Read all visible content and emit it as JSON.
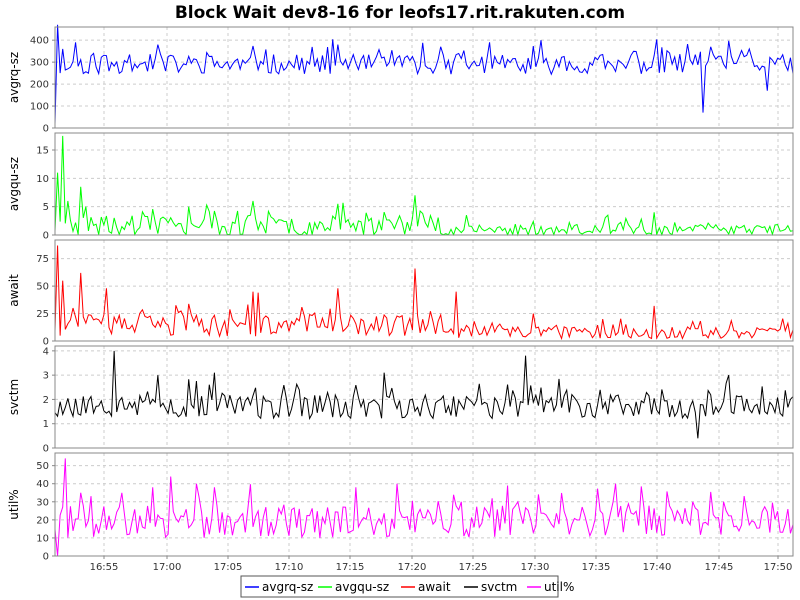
{
  "chart_data": {
    "type": "line",
    "title": "Block Wait dev8-16 for leofs17.rit.rakuten.com",
    "x_ticks": [
      "16:55",
      "17:00",
      "17:05",
      "17:10",
      "17:15",
      "17:20",
      "17:25",
      "17:30",
      "17:35",
      "17:40",
      "17:45",
      "17:50"
    ],
    "grid": true,
    "legend_position": "bottom-center",
    "panels": [
      {
        "ylabel": "avgrq-sz",
        "series_name": "avgrq-sz",
        "color": "#0000ff",
        "ylim": [
          0,
          460
        ],
        "ticks": [
          "0",
          "100",
          "200",
          "300",
          "400"
        ],
        "tick_values": [
          0,
          100,
          200,
          300,
          400
        ],
        "base": 290,
        "amp": 45,
        "seed": 11,
        "spikes": [
          [
            0,
            20
          ],
          [
            1,
            470
          ],
          [
            2,
            250
          ],
          [
            3,
            360
          ],
          [
            8,
            390
          ],
          [
            40,
            380
          ],
          [
            110,
            380
          ],
          [
            150,
            370
          ],
          [
            230,
            260
          ],
          [
            252,
            70
          ],
          [
            270,
            360
          ],
          [
            277,
            170
          ],
          [
            280,
            290
          ]
        ]
      },
      {
        "ylabel": "avgqu-sz",
        "series_name": "avgqu-sz",
        "color": "#00ff00",
        "ylim": [
          0,
          18
        ],
        "ticks": [
          "0",
          "5",
          "10",
          "15"
        ],
        "tick_values": [
          0,
          5,
          10,
          15
        ],
        "base": 1.6,
        "amp": 1.8,
        "seed": 23,
        "spikes": [
          [
            1,
            11
          ],
          [
            3,
            17.5
          ],
          [
            5,
            6
          ],
          [
            10,
            8.5
          ],
          [
            12,
            5
          ],
          [
            77,
            6
          ],
          [
            110,
            5.5
          ],
          [
            140,
            7
          ],
          [
            160,
            3.5
          ],
          [
            215,
            3.5
          ],
          [
            233,
            4
          ]
        ]
      },
      {
        "ylabel": "await",
        "series_name": "await",
        "color": "#ff0000",
        "ylim": [
          0,
          92
        ],
        "ticks": [
          "0",
          "25",
          "50",
          "75"
        ],
        "tick_values": [
          0,
          25,
          50,
          75
        ],
        "base": 14,
        "amp": 10,
        "seed": 37,
        "spikes": [
          [
            1,
            87
          ],
          [
            3,
            55
          ],
          [
            7,
            30
          ],
          [
            10,
            62
          ],
          [
            20,
            48
          ],
          [
            77,
            45
          ],
          [
            79,
            44
          ],
          [
            110,
            48
          ],
          [
            140,
            66
          ],
          [
            156,
            45
          ],
          [
            186,
            25
          ],
          [
            213,
            20
          ],
          [
            233,
            32
          ]
        ]
      },
      {
        "ylabel": "svctm",
        "series_name": "svctm",
        "color": "#000000",
        "ylim": [
          0,
          4.2
        ],
        "ticks": [
          "0",
          "1",
          "2",
          "3",
          "4"
        ],
        "tick_values": [
          0,
          1,
          2,
          3,
          4
        ],
        "base": 1.7,
        "amp": 0.5,
        "seed": 53,
        "spikes": [
          [
            23,
            4.0
          ],
          [
            40,
            3.0
          ],
          [
            62,
            3.1
          ],
          [
            128,
            3.1
          ],
          [
            183,
            3.8
          ],
          [
            250,
            0.4
          ],
          [
            262,
            3.0
          ],
          [
            273,
            1.8
          ]
        ]
      },
      {
        "ylabel": "util%",
        "series_name": "util%",
        "color": "#ff00ff",
        "ylim": [
          0,
          57
        ],
        "ticks": [
          "0",
          "10",
          "20",
          "30",
          "40",
          "50"
        ],
        "tick_values": [
          0,
          10,
          20,
          30,
          40,
          50
        ],
        "base": 19,
        "amp": 9,
        "seed": 71,
        "spikes": [
          [
            1,
            0
          ],
          [
            4,
            54
          ],
          [
            10,
            35
          ],
          [
            38,
            38
          ],
          [
            45,
            44
          ],
          [
            55,
            40
          ],
          [
            62,
            38
          ],
          [
            117,
            38
          ],
          [
            133,
            40
          ],
          [
            158,
            30
          ],
          [
            180,
            30
          ],
          [
            260,
            30
          ]
        ]
      }
    ],
    "legend": [
      {
        "label": "avgrq-sz",
        "color": "#0000ff"
      },
      {
        "label": "avgqu-sz",
        "color": "#00ff00"
      },
      {
        "label": "await",
        "color": "#ff0000"
      },
      {
        "label": "svctm",
        "color": "#000000"
      },
      {
        "label": "util%",
        "color": "#ff00ff"
      }
    ]
  }
}
